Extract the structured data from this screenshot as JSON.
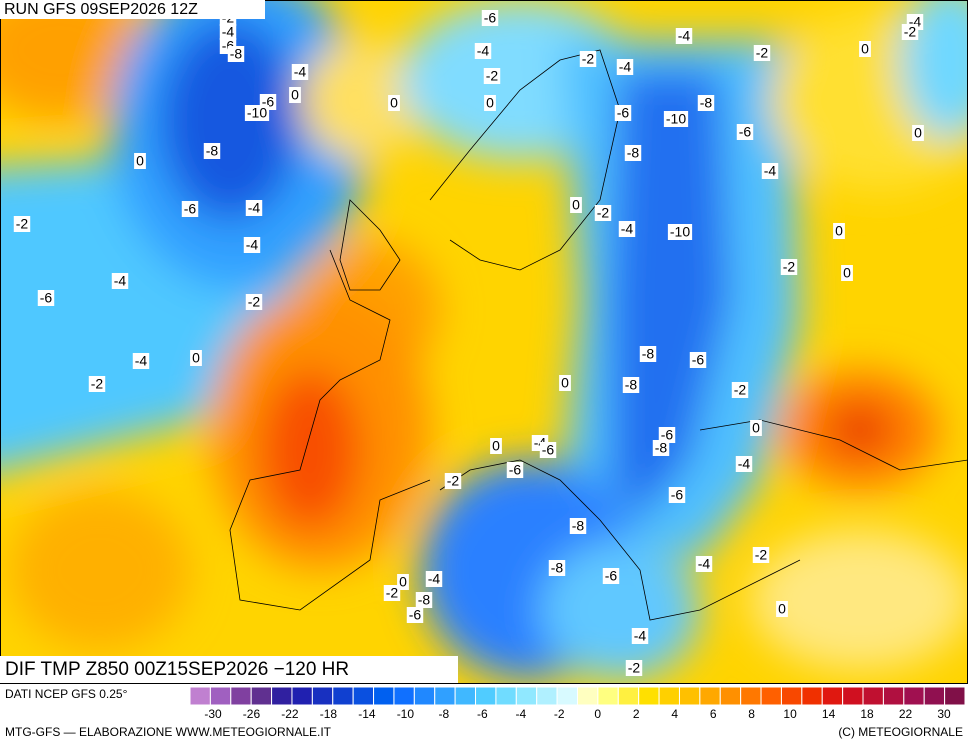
{
  "header": {
    "run": "RUN GFS 09SEP2026 12Z"
  },
  "map": {
    "title": "DIF TMP Z850 00Z15SEP2026 −120 HR",
    "contour_labels": [
      -2,
      -4,
      -6,
      -8,
      -4,
      -6,
      0,
      -10,
      -8,
      0,
      -6,
      -4,
      -2,
      -4,
      -4,
      -6,
      -2,
      -4,
      0,
      -2,
      -6,
      -4,
      -2,
      0,
      0,
      -2,
      -4,
      -4,
      -2,
      0,
      -4,
      -2,
      0,
      -6,
      -10,
      -8,
      -6,
      -8,
      -4,
      0,
      -2,
      -4,
      -10,
      0,
      -2,
      0,
      -8,
      -6,
      -8,
      -2,
      0,
      0,
      -6,
      -8,
      0,
      -4,
      -6,
      -6,
      -2,
      -4,
      -6,
      -8,
      -2,
      -4,
      -8,
      -6,
      -4,
      0,
      -2,
      -8,
      -6,
      0,
      -4,
      -2
    ]
  },
  "legend": {
    "source": "DATI NCEP GFS 0.25°",
    "colors": [
      "#c080d0",
      "#a060c0",
      "#8040a0",
      "#603090",
      "#3020a0",
      "#2020b0",
      "#1830c0",
      "#1040d0",
      "#0a50e0",
      "#0060f0",
      "#1070ff",
      "#2088ff",
      "#30a0ff",
      "#40b8ff",
      "#50ccff",
      "#70dcff",
      "#90e8ff",
      "#b0f0ff",
      "#d8faff",
      "#ffffc0",
      "#ffff80",
      "#fff040",
      "#ffe000",
      "#ffd000",
      "#ffc000",
      "#ffa800",
      "#ff9000",
      "#ff7800",
      "#ff6000",
      "#f84800",
      "#f03000",
      "#e01810",
      "#d01020",
      "#c01030",
      "#b01040",
      "#a01050",
      "#901050",
      "#801048"
    ],
    "ticks": [
      -30,
      -26,
      -22,
      -18,
      -14,
      -10,
      -8,
      -6,
      -4,
      -2,
      0,
      2,
      4,
      6,
      8,
      10,
      14,
      18,
      22,
      30
    ]
  },
  "footer": {
    "credit": "MTG-GFS — ELABORAZIONE WWW.METEOGIORNALE.IT",
    "copyright": "(C) METEOGIORNALE"
  }
}
